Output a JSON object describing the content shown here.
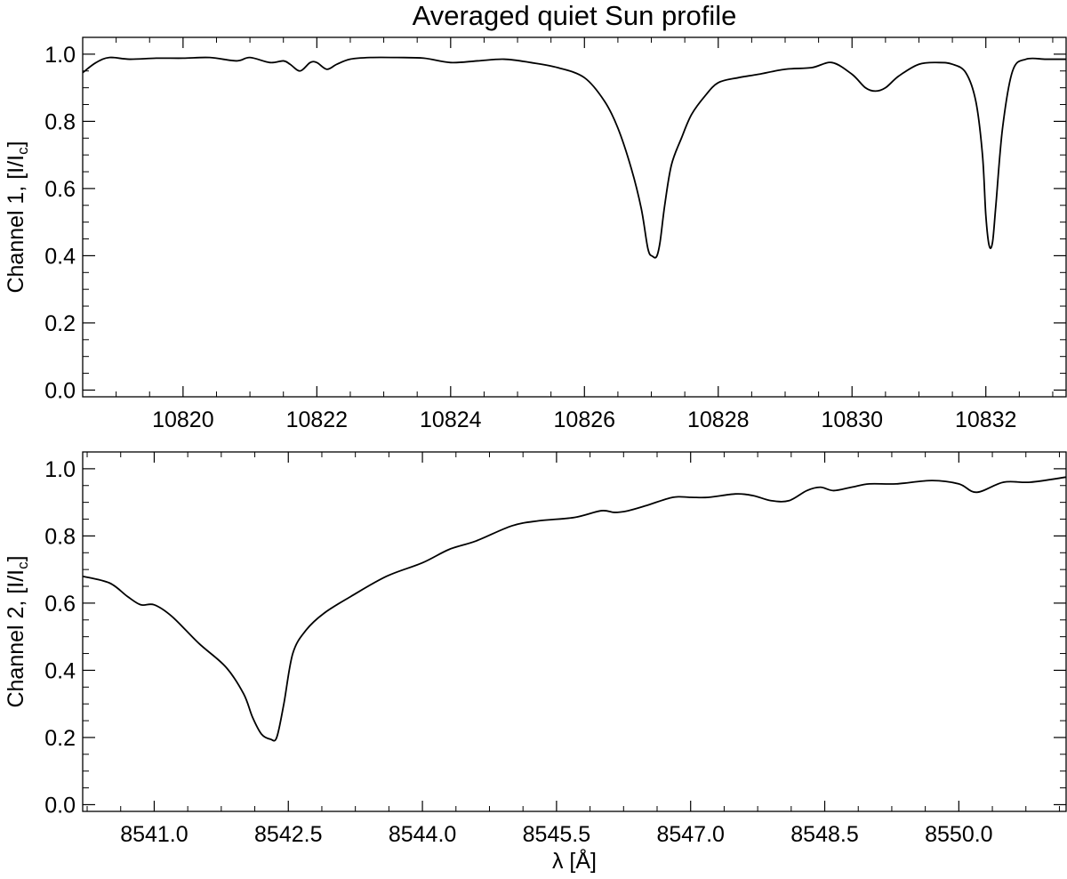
{
  "figure": {
    "title": "Averaged quiet Sun profile",
    "xlabel": "λ [Å]"
  },
  "chart_data": [
    {
      "type": "line",
      "ylabel_main": "Channel 1, [I/I",
      "ylabel_sub": "c",
      "ylabel_end": "]",
      "xlim": [
        10818.5,
        10833.2
      ],
      "ylim": [
        -0.02,
        1.05
      ],
      "xticks": [
        10820,
        10822,
        10824,
        10826,
        10828,
        10830,
        10832
      ],
      "xtick_labels": [
        "10820",
        "10822",
        "10824",
        "10826",
        "10828",
        "10830",
        "10832"
      ],
      "yticks": [
        0.0,
        0.2,
        0.4,
        0.6,
        0.8,
        1.0
      ],
      "ytick_labels": [
        "0.0",
        "0.2",
        "0.4",
        "0.6",
        "0.8",
        "1.0"
      ],
      "x": [
        10818.5,
        10818.7,
        10818.9,
        10819.2,
        10819.6,
        10820.0,
        10820.4,
        10820.8,
        10821.0,
        10821.3,
        10821.5,
        10821.6,
        10821.75,
        10821.9,
        10822.0,
        10822.15,
        10822.3,
        10822.5,
        10822.8,
        10823.2,
        10823.6,
        10824.0,
        10824.4,
        10824.8,
        10825.2,
        10825.6,
        10826.0,
        10826.3,
        10826.5,
        10826.7,
        10826.85,
        10826.95,
        10827.02,
        10827.08,
        10827.13,
        10827.2,
        10827.3,
        10827.45,
        10827.6,
        10827.8,
        10828.0,
        10828.3,
        10828.6,
        10829.0,
        10829.4,
        10829.7,
        10830.0,
        10830.2,
        10830.35,
        10830.5,
        10830.7,
        10831.0,
        10831.3,
        10831.5,
        10831.7,
        10831.85,
        10831.95,
        10832.0,
        10832.05,
        10832.1,
        10832.15,
        10832.25,
        10832.4,
        10832.6,
        10832.9,
        10833.2
      ],
      "y": [
        0.945,
        0.975,
        0.99,
        0.985,
        0.988,
        0.988,
        0.99,
        0.98,
        0.99,
        0.975,
        0.98,
        0.97,
        0.95,
        0.975,
        0.975,
        0.955,
        0.97,
        0.985,
        0.99,
        0.99,
        0.988,
        0.975,
        0.98,
        0.985,
        0.975,
        0.96,
        0.93,
        0.86,
        0.78,
        0.66,
        0.54,
        0.42,
        0.398,
        0.398,
        0.44,
        0.55,
        0.67,
        0.75,
        0.82,
        0.875,
        0.915,
        0.93,
        0.94,
        0.955,
        0.96,
        0.975,
        0.94,
        0.9,
        0.89,
        0.9,
        0.935,
        0.97,
        0.975,
        0.97,
        0.945,
        0.86,
        0.7,
        0.52,
        0.43,
        0.44,
        0.55,
        0.78,
        0.95,
        0.985,
        0.985,
        0.985
      ]
    },
    {
      "type": "line",
      "ylabel_main": "Channel 2, [I/I",
      "ylabel_sub": "c",
      "ylabel_end": "]",
      "xlim": [
        8540.2,
        8551.2
      ],
      "ylim": [
        -0.02,
        1.05
      ],
      "xticks": [
        8541.0,
        8542.5,
        8544.0,
        8545.5,
        8547.0,
        8548.5,
        8550.0
      ],
      "xtick_labels": [
        "8541.0",
        "8542.5",
        "8544.0",
        "8545.5",
        "8547.0",
        "8548.5",
        "8550.0"
      ],
      "yticks": [
        0.0,
        0.2,
        0.4,
        0.6,
        0.8,
        1.0
      ],
      "ytick_labels": [
        "0.0",
        "0.2",
        "0.4",
        "0.6",
        "0.8",
        "1.0"
      ],
      "x": [
        8540.2,
        8540.5,
        8540.7,
        8540.85,
        8541.0,
        8541.2,
        8541.5,
        8541.8,
        8542.0,
        8542.1,
        8542.2,
        8542.3,
        8542.37,
        8542.45,
        8542.55,
        8542.7,
        8542.9,
        8543.2,
        8543.6,
        8544.0,
        8544.3,
        8544.6,
        8545.0,
        8545.3,
        8545.7,
        8546.0,
        8546.15,
        8546.3,
        8546.5,
        8546.8,
        8547.0,
        8547.2,
        8547.5,
        8547.7,
        8547.9,
        8548.1,
        8548.3,
        8548.45,
        8548.6,
        8548.8,
        8549.0,
        8549.3,
        8549.7,
        8550.0,
        8550.2,
        8550.5,
        8550.8,
        8551.2
      ],
      "y": [
        0.68,
        0.66,
        0.62,
        0.595,
        0.595,
        0.56,
        0.48,
        0.41,
        0.33,
        0.26,
        0.21,
        0.195,
        0.2,
        0.3,
        0.45,
        0.52,
        0.57,
        0.62,
        0.68,
        0.72,
        0.76,
        0.785,
        0.83,
        0.845,
        0.855,
        0.875,
        0.87,
        0.875,
        0.89,
        0.915,
        0.915,
        0.915,
        0.925,
        0.92,
        0.905,
        0.905,
        0.935,
        0.945,
        0.935,
        0.945,
        0.955,
        0.955,
        0.965,
        0.955,
        0.93,
        0.96,
        0.96,
        0.975
      ]
    }
  ]
}
